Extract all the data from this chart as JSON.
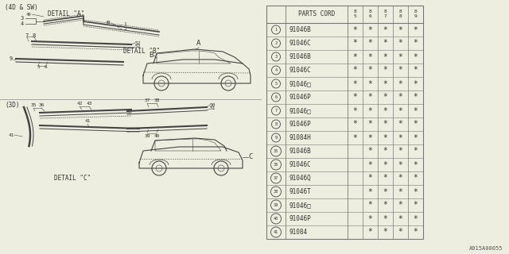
{
  "bg_color": "#eeeee0",
  "rows": [
    {
      "num": "1",
      "code": "91046B",
      "stars": [
        1,
        1,
        1,
        1,
        1
      ]
    },
    {
      "num": "2",
      "code": "91046C",
      "stars": [
        1,
        1,
        1,
        1,
        1
      ]
    },
    {
      "num": "3",
      "code": "91046B",
      "stars": [
        1,
        1,
        1,
        1,
        1
      ]
    },
    {
      "num": "4",
      "code": "91046C",
      "stars": [
        1,
        1,
        1,
        1,
        1
      ]
    },
    {
      "num": "5",
      "code": "91046□",
      "stars": [
        1,
        1,
        1,
        1,
        1
      ]
    },
    {
      "num": "6",
      "code": "91046P",
      "stars": [
        1,
        1,
        1,
        1,
        1
      ]
    },
    {
      "num": "7",
      "code": "91046□",
      "stars": [
        1,
        1,
        1,
        1,
        1
      ]
    },
    {
      "num": "8",
      "code": "91046P",
      "stars": [
        1,
        1,
        1,
        1,
        1
      ]
    },
    {
      "num": "9",
      "code": "91084H",
      "stars": [
        1,
        1,
        1,
        1,
        1
      ]
    },
    {
      "num": "35",
      "code": "91046B",
      "stars": [
        0,
        1,
        1,
        1,
        1
      ]
    },
    {
      "num": "36",
      "code": "91046C",
      "stars": [
        0,
        1,
        1,
        1,
        1
      ]
    },
    {
      "num": "37",
      "code": "91046Q",
      "stars": [
        0,
        1,
        1,
        1,
        1
      ]
    },
    {
      "num": "38",
      "code": "91046T",
      "stars": [
        0,
        1,
        1,
        1,
        1
      ]
    },
    {
      "num": "39",
      "code": "91046□",
      "stars": [
        0,
        1,
        1,
        1,
        1
      ]
    },
    {
      "num": "40",
      "code": "91046P",
      "stars": [
        0,
        1,
        1,
        1,
        1
      ]
    },
    {
      "num": "41",
      "code": "91084",
      "stars": [
        0,
        1,
        1,
        1,
        1
      ]
    }
  ],
  "footer": "A915A00055",
  "line_color": "#444444",
  "table_line_color": "#777777"
}
